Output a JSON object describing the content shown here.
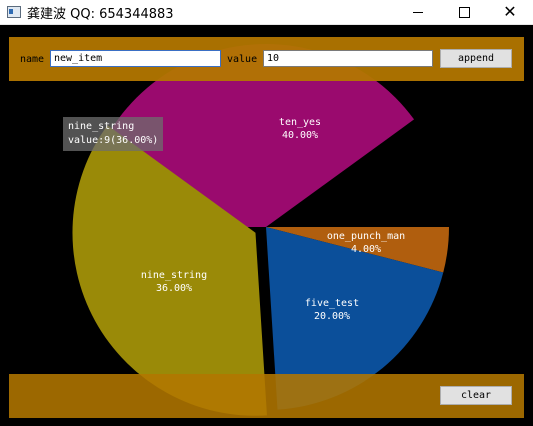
{
  "window": {
    "title": "龚建波 QQ: 654344883",
    "minimize_glyph": "",
    "maximize_glyph": "",
    "close_glyph": "✕"
  },
  "top_bar": {
    "name_label": "name",
    "name_value": "new_item",
    "value_label": "value",
    "value_value": "10",
    "append_label": "append"
  },
  "bottom_bar": {
    "clear_label": "clear"
  },
  "tooltip": {
    "line1": "nine_string",
    "line2": "value:9(36.00%)"
  },
  "chart_data": {
    "type": "pie",
    "slices": [
      {
        "name": "ten_yes",
        "value": 10,
        "percent_label": "40.00%",
        "color": "#9a0a6e"
      },
      {
        "name": "one_punch_man",
        "value": 1,
        "percent_label": "4.00%",
        "color": "#b05e0e"
      },
      {
        "name": "five_test",
        "value": 5,
        "percent_label": "20.00%",
        "color": "#0b4f9a"
      },
      {
        "name": "nine_string",
        "value": 9,
        "percent_label": "36.00%",
        "color": "#9a8a08",
        "exploded": true
      }
    ]
  }
}
